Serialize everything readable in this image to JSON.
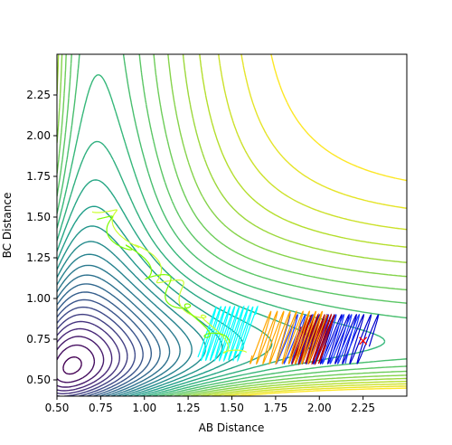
{
  "chart_data": {
    "type": "contour",
    "title": "",
    "xlabel": "AB Distance",
    "ylabel": "BC Distance",
    "xlim": [
      0.5,
      2.5
    ],
    "ylim": [
      0.4,
      2.5
    ],
    "xticks": [
      "0.50",
      "0.75",
      "1.00",
      "1.25",
      "1.50",
      "1.75",
      "2.00",
      "2.25"
    ],
    "yticks": [
      "0.50",
      "0.75",
      "1.00",
      "1.25",
      "1.50",
      "1.75",
      "2.00",
      "2.25"
    ],
    "grid": false,
    "colormap": "viridis",
    "contour_levels": 28,
    "marker": {
      "x": 2.25,
      "y": 0.74,
      "symbol": "x",
      "color": "#ff0000"
    },
    "trajectories": [
      {
        "color": "#0000cc",
        "x_range": [
          1.9,
          2.3
        ],
        "y_range": [
          0.6,
          0.9
        ]
      },
      {
        "color": "#1e3cff",
        "x_range": [
          1.78,
          2.2
        ],
        "y_range": [
          0.6,
          0.9
        ]
      },
      {
        "color": "#b40000",
        "x_range": [
          1.87,
          2.05
        ],
        "y_range": [
          0.6,
          0.9
        ]
      },
      {
        "color": "#ffa500",
        "x_range": [
          1.65,
          2.0
        ],
        "y_range": [
          0.6,
          0.92
        ]
      },
      {
        "color": "#00ffff",
        "x_range": [
          1.35,
          1.6
        ],
        "y_range": [
          0.62,
          0.95
        ]
      },
      {
        "color": "#ccff33",
        "x_range": [
          0.74,
          1.55
        ],
        "y_range": [
          0.62,
          1.58
        ]
      },
      {
        "color": "#7cfc00",
        "x_range": [
          0.74,
          1.45
        ],
        "y_range": [
          0.7,
          1.5
        ]
      }
    ]
  }
}
